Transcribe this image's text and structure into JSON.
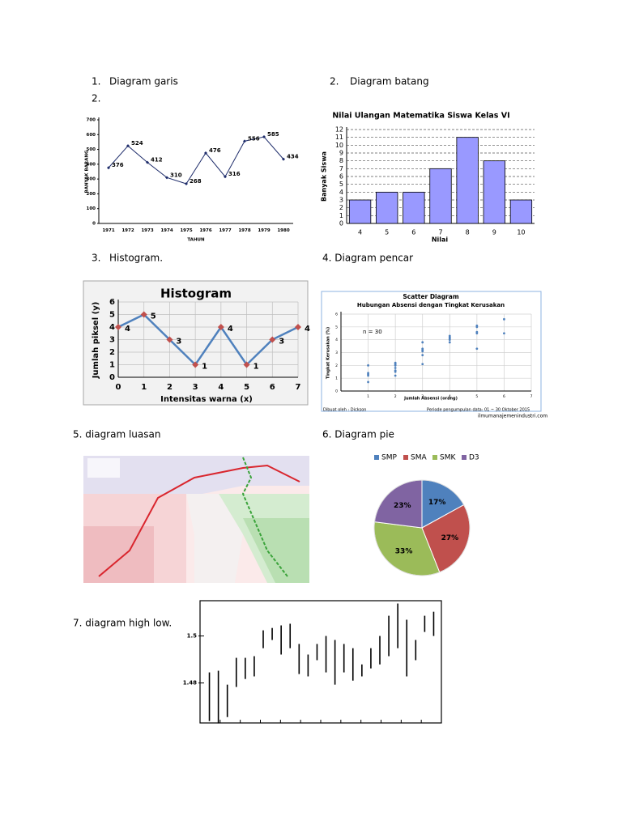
{
  "headings": [
    "1.",
    "Diagram garis",
    "2.",
    "2.",
    "Diagram batang",
    "3.",
    "Histogram.",
    "4. Diagram pencar",
    "5. diagram luasan",
    "6. Diagram pie",
    "7. diagram high low."
  ],
  "chart_data": [
    {
      "type": "line",
      "x_label": "TAHUN",
      "y_label": "BANYAK BARANG",
      "categories": [
        "1971",
        "1972",
        "1973",
        "1974",
        "1975",
        "1976",
        "1977",
        "1978",
        "1979",
        "1980"
      ],
      "values": [
        376,
        524,
        412,
        310,
        268,
        476,
        316,
        556,
        585,
        434
      ],
      "color": "#1f2d6b",
      "marker_color": "#1f2d6b",
      "data_labels": true,
      "ylim": [
        0,
        700
      ],
      "yticks": [
        0,
        100,
        200,
        300,
        400,
        500,
        600,
        700
      ],
      "grid": false
    },
    {
      "type": "bar",
      "title": "Nilai Ulangan Matematika Siswa Kelas VI",
      "x_label": "Nilai",
      "y_label": "Banyak Siswa",
      "categories": [
        "4",
        "5",
        "6",
        "7",
        "8",
        "9",
        "10"
      ],
      "values": [
        3,
        4,
        4,
        7,
        11,
        8,
        3
      ],
      "color": "#9999ff",
      "ylim": [
        0,
        12
      ],
      "yticks": [
        0,
        1,
        2,
        3,
        4,
        5,
        6,
        7,
        8,
        9,
        10,
        11,
        12
      ],
      "grid": true
    },
    {
      "type": "line",
      "title": "Histogram",
      "x_label": "Intensitas warna (x)",
      "y_label": "Jumlah piksel (y)",
      "x": [
        0,
        1,
        2,
        3,
        4,
        5,
        6,
        7
      ],
      "values": [
        4,
        5,
        3,
        1,
        4,
        1,
        3,
        4
      ],
      "color": "#4f81bd",
      "marker_color": "#c0504d",
      "data_labels": true,
      "xlim": [
        0,
        7
      ],
      "xticks": [
        0,
        1,
        2,
        3,
        4,
        5,
        6,
        7
      ],
      "ylim": [
        0,
        6
      ],
      "yticks": [
        0,
        1,
        2,
        3,
        4,
        5,
        6
      ],
      "grid": true
    },
    {
      "type": "scatter",
      "title": "Scatter Diagram",
      "subtitle": "Hubungan Absensi dengan Tingkat Kerusakan",
      "annotation": "n = 30",
      "x_label": "Jumlah Absensi (orang)",
      "y_label": "Tingkat Kerusakan (%)",
      "notes": [
        "Dibuat oleh : Dickson",
        "Periode pengumpulan data: 01 ~ 30 Oktober 2015",
        "ilmumanajemenindustri.com"
      ],
      "x": [
        1,
        1,
        1,
        1,
        1,
        2,
        2,
        2,
        2,
        2,
        2,
        2,
        3,
        3,
        3,
        3,
        3,
        3,
        4,
        4,
        4,
        4,
        4,
        5,
        5,
        5,
        5,
        5,
        6,
        6
      ],
      "values": [
        0.7,
        1.2,
        1.3,
        1.4,
        2.0,
        1.2,
        1.5,
        1.6,
        1.8,
        2.0,
        2.1,
        2.2,
        2.1,
        2.8,
        3.1,
        3.2,
        3.3,
        3.8,
        3.8,
        4.0,
        4.1,
        4.2,
        4.3,
        3.3,
        4.5,
        4.6,
        5.0,
        5.1,
        4.5,
        5.6
      ],
      "color": "#4f81bd",
      "xlim": [
        0,
        7
      ],
      "xticks": [
        1,
        2,
        3,
        4,
        5,
        6,
        7
      ],
      "ylim": [
        0,
        6
      ],
      "yticks": [
        0,
        1,
        2,
        3,
        4,
        5,
        6
      ],
      "grid": true
    },
    {
      "type": "pie",
      "categories": [
        "SMP",
        "SMA",
        "SMK",
        "D3"
      ],
      "values": [
        17,
        27,
        33,
        23
      ],
      "value_labels": [
        "17%",
        "27%",
        "33%",
        "23%"
      ],
      "colors": [
        "#4f81bd",
        "#c0504d",
        "#9bbb59",
        "#8064a2"
      ]
    },
    {
      "type": "highlow",
      "high": [
        1.4845,
        1.4852,
        1.4793,
        1.4907,
        1.4907,
        1.4914,
        1.5024,
        1.5034,
        1.5045,
        1.5052,
        1.4966,
        1.4921,
        1.4966,
        1.5,
        1.4983,
        1.4966,
        1.4948,
        1.4879,
        1.4948,
        1.5,
        1.5086,
        1.5138,
        1.5069,
        1.4983,
        1.5086,
        1.5103
      ],
      "low": [
        1.4638,
        1.4628,
        1.4655,
        1.4783,
        1.4817,
        1.4828,
        1.4948,
        1.4983,
        1.4921,
        1.4948,
        1.4838,
        1.4828,
        1.4897,
        1.4845,
        1.4793,
        1.4845,
        1.481,
        1.4828,
        1.4862,
        1.4879,
        1.4914,
        1.4948,
        1.4828,
        1.4897,
        1.5017,
        1.5
      ],
      "color": "#000000",
      "ylim": [
        1.463,
        1.515
      ],
      "yticks": [
        1.48,
        1.5
      ],
      "grid": false
    }
  ]
}
